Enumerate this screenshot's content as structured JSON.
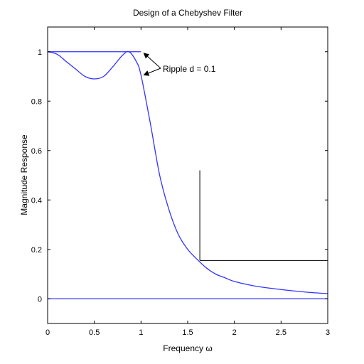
{
  "chart_data": {
    "type": "line",
    "title": "Design of a Chebyshev Filter",
    "xlabel": "Frequency ω",
    "ylabel": "Magnitude Response",
    "xlim": [
      0,
      3
    ],
    "ylim": [
      -0.1,
      1.1
    ],
    "x_ticks": [
      "0",
      "0.5",
      "1",
      "1.5",
      "2",
      "2.5",
      "3"
    ],
    "y_ticks": [
      "0",
      "0.2",
      "0.4",
      "0.6",
      "0.8",
      "1"
    ],
    "grid": false,
    "series": [
      {
        "color": "#3333ff",
        "x": [
          0,
          0.1,
          0.2,
          0.3,
          0.4,
          0.5,
          0.6,
          0.7,
          0.8,
          0.87,
          0.95,
          1.0,
          1.1,
          1.2,
          1.3,
          1.4,
          1.5,
          1.6,
          1.7,
          1.8,
          1.9,
          2.0,
          2.2,
          2.4,
          2.6,
          2.8,
          3.0
        ],
        "y": [
          1.0,
          0.99,
          0.96,
          0.93,
          0.9,
          0.89,
          0.9,
          0.94,
          0.985,
          1.0,
          0.96,
          0.905,
          0.71,
          0.5,
          0.36,
          0.26,
          0.2,
          0.16,
          0.125,
          0.1,
          0.085,
          0.07,
          0.053,
          0.042,
          0.033,
          0.026,
          0.021
        ]
      },
      {
        "color": "#3333ff",
        "x": [
          0,
          1.0
        ],
        "y": [
          1.0,
          1.0
        ]
      },
      {
        "color": "#3333ff",
        "x": [
          0,
          3
        ],
        "y": [
          0,
          0
        ]
      }
    ],
    "specification_lines": [
      {
        "color": "#000000",
        "x": [
          1.63,
          1.63
        ],
        "y": [
          0.155,
          0.52
        ]
      },
      {
        "color": "#000000",
        "x": [
          1.63,
          3.0
        ],
        "y": [
          0.155,
          0.155
        ]
      }
    ],
    "annotation": {
      "text": "Ripple d = 0.1",
      "arrow_targets": [
        [
          1.0,
          1.0
        ],
        [
          1.0,
          0.9
        ]
      ]
    }
  }
}
